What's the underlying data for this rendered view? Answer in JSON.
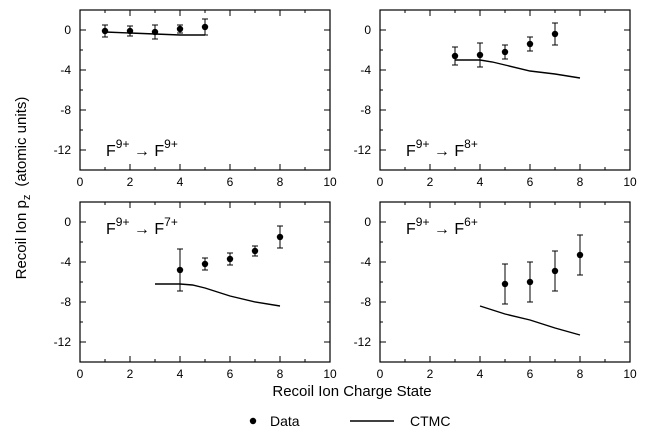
{
  "figure": {
    "ylabel": "Recoil Ion p",
    "ylabel_sub": "z",
    "ylabel_units": "(atomic units)",
    "xlabel": "Recoil Ion Charge State",
    "legend": [
      {
        "label": "Data",
        "marker": "dot"
      },
      {
        "label": "CTMC",
        "marker": "line"
      }
    ]
  },
  "chart_data": [
    {
      "type": "scatter",
      "title": "F9+ → F9+",
      "label_parts": {
        "lhs": "F",
        "lhs_sup": "9+",
        "arrow": "→",
        "rhs": "F",
        "rhs_sup": "9+"
      },
      "label_position": "bottom-left",
      "xlim": [
        0,
        10
      ],
      "ylim": [
        -14,
        2
      ],
      "xticks": [
        0,
        2,
        4,
        6,
        8,
        10
      ],
      "yticks": [
        0,
        -4,
        -8,
        -12
      ],
      "series": [
        {
          "name": "Data",
          "kind": "points",
          "x": [
            1,
            2,
            3,
            4,
            5
          ],
          "y": [
            -0.1,
            -0.1,
            -0.2,
            0.1,
            0.3
          ],
          "err": [
            0.6,
            0.5,
            0.7,
            0.4,
            0.8
          ]
        },
        {
          "name": "CTMC",
          "kind": "line",
          "x": [
            1,
            2,
            3,
            4,
            5
          ],
          "y": [
            -0.2,
            -0.3,
            -0.4,
            -0.5,
            -0.5
          ]
        }
      ]
    },
    {
      "type": "scatter",
      "title": "F9+ → F8+",
      "label_parts": {
        "lhs": "F",
        "lhs_sup": "9+",
        "arrow": "→",
        "rhs": "F",
        "rhs_sup": "8+"
      },
      "label_position": "bottom-left",
      "xlim": [
        0,
        10
      ],
      "ylim": [
        -14,
        2
      ],
      "xticks": [
        0,
        2,
        4,
        6,
        8,
        10
      ],
      "yticks": [
        0,
        -4,
        -8,
        -12
      ],
      "series": [
        {
          "name": "Data",
          "kind": "points",
          "x": [
            3,
            4,
            5,
            6,
            7
          ],
          "y": [
            -2.6,
            -2.5,
            -2.2,
            -1.4,
            -0.4
          ],
          "err": [
            0.9,
            1.2,
            0.7,
            0.7,
            1.1
          ]
        },
        {
          "name": "CTMC",
          "kind": "line",
          "x": [
            3,
            4,
            4.5,
            5,
            6,
            7,
            8
          ],
          "y": [
            -3.0,
            -3.0,
            -3.2,
            -3.5,
            -4.1,
            -4.4,
            -4.8
          ]
        }
      ]
    },
    {
      "type": "scatter",
      "title": "F9+ → F7+",
      "label_parts": {
        "lhs": "F",
        "lhs_sup": "9+",
        "arrow": "→",
        "rhs": "F",
        "rhs_sup": "7+"
      },
      "label_position": "top-left",
      "xlim": [
        0,
        10
      ],
      "ylim": [
        -14,
        2
      ],
      "xticks": [
        0,
        2,
        4,
        6,
        8,
        10
      ],
      "yticks": [
        0,
        -4,
        -8,
        -12
      ],
      "series": [
        {
          "name": "Data",
          "kind": "points",
          "x": [
            4,
            5,
            6,
            7,
            8
          ],
          "y": [
            -4.8,
            -4.2,
            -3.7,
            -2.9,
            -1.5
          ],
          "err": [
            2.1,
            0.6,
            0.6,
            0.5,
            1.1
          ]
        },
        {
          "name": "CTMC",
          "kind": "line",
          "x": [
            3,
            4,
            4.5,
            5,
            6,
            7,
            8
          ],
          "y": [
            -6.2,
            -6.2,
            -6.3,
            -6.6,
            -7.4,
            -8.0,
            -8.4
          ]
        }
      ]
    },
    {
      "type": "scatter",
      "title": "F9+ → F6+",
      "label_parts": {
        "lhs": "F",
        "lhs_sup": "9+",
        "arrow": "→",
        "rhs": "F",
        "rhs_sup": "6+"
      },
      "label_position": "top-left",
      "xlim": [
        0,
        10
      ],
      "ylim": [
        -14,
        2
      ],
      "xticks": [
        0,
        2,
        4,
        6,
        8,
        10
      ],
      "yticks": [
        0,
        -4,
        -8,
        -12
      ],
      "series": [
        {
          "name": "Data",
          "kind": "points",
          "x": [
            5,
            6,
            7,
            8
          ],
          "y": [
            -6.2,
            -6.0,
            -4.9,
            -3.3
          ],
          "err": [
            2.0,
            2.0,
            2.0,
            2.0
          ]
        },
        {
          "name": "CTMC",
          "kind": "line",
          "x": [
            4,
            5,
            6,
            7,
            8
          ],
          "y": [
            -8.4,
            -9.2,
            -9.8,
            -10.6,
            -11.3
          ]
        }
      ]
    }
  ]
}
